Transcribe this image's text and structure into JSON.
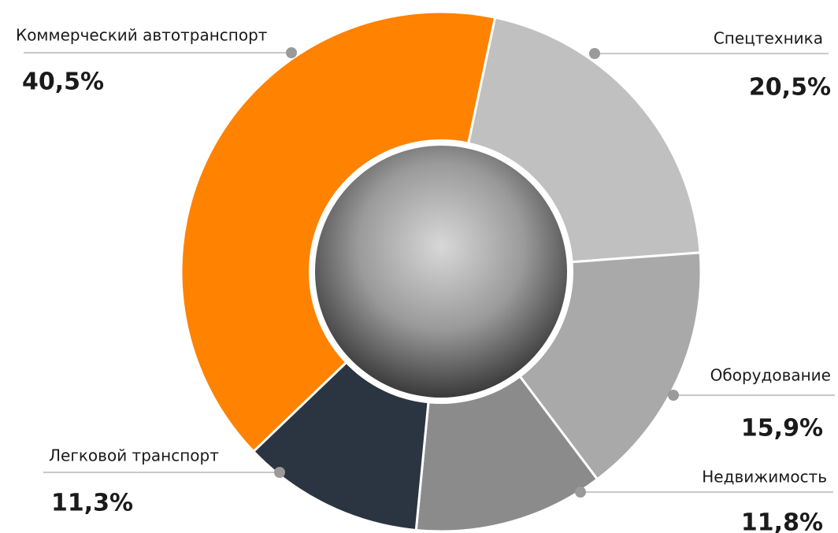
{
  "chart_data": {
    "type": "donut",
    "categories": [
      "Спецтехника",
      "Оборудование",
      "Недвижимость",
      "Легковой транспорт",
      "Коммерческий автотранспорт"
    ],
    "values": [
      20.5,
      15.9,
      11.8,
      11.3,
      40.5
    ],
    "value_labels": [
      "20,5%",
      "15,9%",
      "11,8%",
      "11,3%",
      "40,5%"
    ],
    "colors": [
      "#c0c0c0",
      "#a9a9a9",
      "#8b8b8b",
      "#2b3542",
      "#ff8200"
    ]
  }
}
